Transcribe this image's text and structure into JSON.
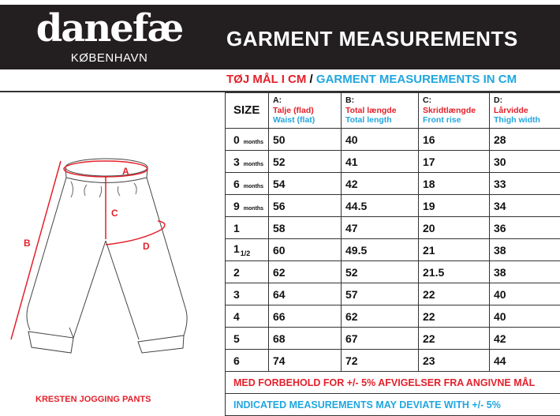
{
  "brand": {
    "name": "danefæ",
    "city": "KØBENHAVN"
  },
  "header": {
    "title": "GARMENT MEASUREMENTS"
  },
  "subtitle": {
    "danish": "TØJ MÅL I CM",
    "separator": " / ",
    "english": "GARMENT MEASUREMENTS IN CM"
  },
  "colors": {
    "red": "#e4202b",
    "blue": "#21a6df",
    "header_bg": "#231f20"
  },
  "diagram": {
    "labels": {
      "a": "A",
      "b": "B",
      "c": "C",
      "d": "D"
    },
    "product_name": "KRESTEN JOGGING PANTS"
  },
  "table": {
    "size_header": "SIZE",
    "columns": [
      {
        "letter": "A:",
        "danish": "Talje (flad)",
        "english": "Waist (flat)"
      },
      {
        "letter": "B:",
        "danish": "Total længde",
        "english": "Total length"
      },
      {
        "letter": "C:",
        "danish": "Skridtlængde",
        "english": "Front rise"
      },
      {
        "letter": "D:",
        "danish": "Lårvidde",
        "english": "Thigh width"
      }
    ],
    "rows": [
      {
        "size": "0",
        "unit": "months",
        "v": [
          "50",
          "40",
          "16",
          "28"
        ]
      },
      {
        "size": "3",
        "unit": "months",
        "v": [
          "52",
          "41",
          "17",
          "30"
        ]
      },
      {
        "size": "6",
        "unit": "months",
        "v": [
          "54",
          "42",
          "18",
          "33"
        ]
      },
      {
        "size": "9",
        "unit": "months",
        "v": [
          "56",
          "44.5",
          "19",
          "34"
        ]
      },
      {
        "size": "1",
        "unit": "",
        "v": [
          "58",
          "47",
          "20",
          "36"
        ]
      },
      {
        "size": "1",
        "unit": "1/2",
        "v": [
          "60",
          "49.5",
          "21",
          "38"
        ]
      },
      {
        "size": "2",
        "unit": "",
        "v": [
          "62",
          "52",
          "21.5",
          "38"
        ]
      },
      {
        "size": "3",
        "unit": "",
        "v": [
          "64",
          "57",
          "22",
          "40"
        ]
      },
      {
        "size": "4",
        "unit": "",
        "v": [
          "66",
          "62",
          "22",
          "40"
        ]
      },
      {
        "size": "5",
        "unit": "",
        "v": [
          "68",
          "67",
          "22",
          "42"
        ]
      },
      {
        "size": "6",
        "unit": "",
        "v": [
          "74",
          "72",
          "23",
          "44"
        ]
      }
    ],
    "note_danish": "MED FORBEHOLD FOR +/- 5% AFVIGELSER FRA ANGIVNE MÅL",
    "note_english": "INDICATED MEASUREMENTS MAY DEVIATE WITH +/- 5%"
  }
}
